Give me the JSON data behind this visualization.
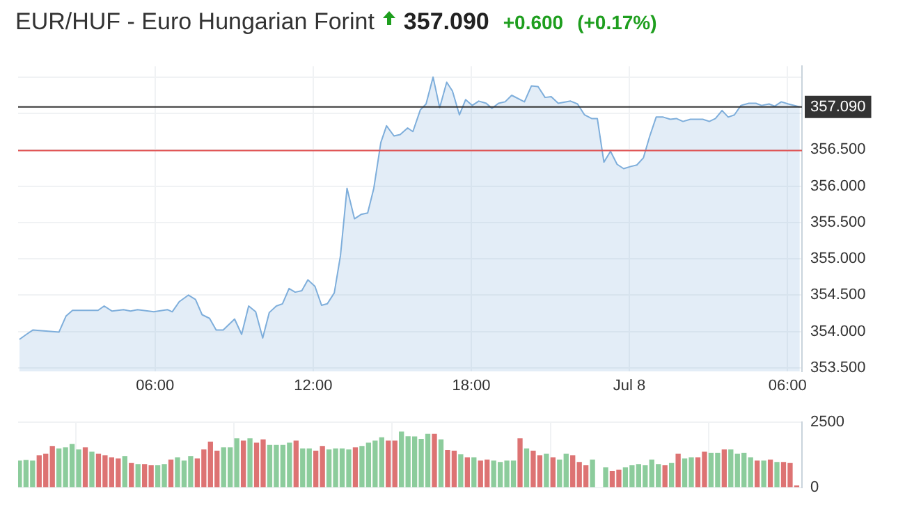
{
  "chart_data": [
    {
      "type": "area",
      "title": "EUR/HUF - Euro Hungarian Forint",
      "annotations": [
        "357.090",
        "+0.600",
        "(+0.17%)"
      ],
      "color": "#7eaedb",
      "x": [
        "--07-07T00:51",
        "--07-07T01:07",
        "--07-07T01:22",
        "--07-07T02:21",
        "--07-07T02:37",
        "--07-07T02:52",
        "--07-07T03:50",
        "--07-07T04:04",
        "--07-07T04:22",
        "--07-07T04:48",
        "--07-07T05:04",
        "--07-07T05:20",
        "--07-07T05:57",
        "--07-07T06:28",
        "--07-07T06:39",
        "--07-07T06:55",
        "--07-07T07:16",
        "--07-07T07:32",
        "--07-07T07:47",
        "--07-07T08:04",
        "--07-07T08:19",
        "--07-07T08:35",
        "--07-07T09:01",
        "--07-07T09:17",
        "--07-07T09:33",
        "--07-07T09:49",
        "--07-07T10:05",
        "--07-07T10:20",
        "--07-07T10:36",
        "--07-07T10:50",
        "--07-07T11:05",
        "--07-07T11:19",
        "--07-07T11:34",
        "--07-07T11:48",
        "--07-07T12:04",
        "--07-07T12:19",
        "--07-07T12:32",
        "--07-07T12:48",
        "--07-07T13:02",
        "--07-07T13:17",
        "--07-07T13:34",
        "--07-07T13:49",
        "--07-07T14:04",
        "--07-07T14:18",
        "--07-07T14:34",
        "--07-07T14:47",
        "--07-07T15:04",
        "--07-07T15:18",
        "--07-07T15:35",
        "--07-07T15:47",
        "--07-07T16:04",
        "--07-07T16:17",
        "--07-07T16:33",
        "--07-07T16:48",
        "--07-07T17:04",
        "--07-07T17:17",
        "--07-07T17:33",
        "--07-07T17:47",
        "--07-07T18:02",
        "--07-07T18:17",
        "--07-07T18:34",
        "--07-07T18:47",
        "--07-07T19:02",
        "--07-07T19:17",
        "--07-07T19:32",
        "--07-07T20:01",
        "--07-07T20:17",
        "--07-07T20:32",
        "--07-07T20:48",
        "--07-07T21:02",
        "--07-07T21:18",
        "--07-07T21:46",
        "--07-07T22:02",
        "--07-07T22:18",
        "--07-07T22:34",
        "--07-07T22:47",
        "--07-07T23:02",
        "--07-07T23:17",
        "--07-07T23:32",
        "--07-07T23:47",
        "--07-08T00:03",
        "--07-08T00:17",
        "--07-08T00:32",
        "--07-08T00:46",
        "--07-08T01:01",
        "--07-08T01:17",
        "--07-08T01:33",
        "--07-08T01:47",
        "--07-08T02:02",
        "--07-08T02:19",
        "--07-08T02:47",
        "--07-08T03:02",
        "--07-08T03:16",
        "--07-08T03:31",
        "--07-08T03:45",
        "--07-08T03:59",
        "--07-08T04:14",
        "--07-08T04:32",
        "--07-08T04:48",
        "--07-08T05:01",
        "--07-08T05:18",
        "--07-08T05:31",
        "--07-08T05:46",
        "--07-08T06:02",
        "--07-08T06:28"
      ],
      "values": [
        353.89,
        353.96,
        354.02,
        353.99,
        354.21,
        354.29,
        354.29,
        354.35,
        354.28,
        354.3,
        354.28,
        354.3,
        354.27,
        354.3,
        354.27,
        354.41,
        354.5,
        354.44,
        354.23,
        354.18,
        354.02,
        354.02,
        354.17,
        353.96,
        354.35,
        354.27,
        353.91,
        354.26,
        354.35,
        354.38,
        354.59,
        354.54,
        354.56,
        354.71,
        354.62,
        354.36,
        354.38,
        354.53,
        355.04,
        355.97,
        355.55,
        355.61,
        355.63,
        355.97,
        356.6,
        356.83,
        356.69,
        356.71,
        356.8,
        356.75,
        357.05,
        357.13,
        357.5,
        357.08,
        357.43,
        357.31,
        356.98,
        357.19,
        357.11,
        357.17,
        357.14,
        357.07,
        357.14,
        357.16,
        357.25,
        357.16,
        357.38,
        357.37,
        357.22,
        357.23,
        357.14,
        357.17,
        357.13,
        356.98,
        356.93,
        356.93,
        356.33,
        356.48,
        356.3,
        356.24,
        356.27,
        356.29,
        356.39,
        356.68,
        356.95,
        356.95,
        356.92,
        356.93,
        356.89,
        356.92,
        356.92,
        356.89,
        356.93,
        357.04,
        356.95,
        356.98,
        357.11,
        357.14,
        357.14,
        357.11,
        357.13,
        357.1,
        357.16,
        357.13,
        357.09
      ],
      "xlim": [
        "--07-07T00:48",
        "--07-08T06:33"
      ],
      "xticks": [
        {
          "value": "--07-07T06:00",
          "label": "06:00"
        },
        {
          "value": "--07-07T12:00",
          "label": "12:00"
        },
        {
          "value": "--07-07T18:00",
          "label": "18:00"
        },
        {
          "value": "--07-08",
          "label": "Jul 8"
        },
        {
          "value": "--07-08T06:00",
          "label": "06:00"
        }
      ],
      "ylim": [
        353.45,
        357.65
      ],
      "yticks": [
        {
          "value": 353.5,
          "label": "353.500"
        },
        {
          "value": 354,
          "label": "354.000"
        },
        {
          "value": 354.5,
          "label": "354.500"
        },
        {
          "value": 355,
          "label": "355.000"
        },
        {
          "value": 355.5,
          "label": "355.500"
        },
        {
          "value": 356,
          "label": "356.000"
        },
        {
          "value": 356.5,
          "label": "356.500"
        },
        {
          "value": 357,
          "label": null
        },
        {
          "value": 357.5,
          "label": null
        }
      ],
      "ref_lines": [
        {
          "axis": "y",
          "value": 357.09,
          "label": "357.090",
          "color": "#333333"
        },
        {
          "axis": "y",
          "value": 356.49,
          "color": "#e05050"
        }
      ],
      "grid": true
    },
    {
      "type": "bar",
      "tick_labels": "y",
      "grid": true,
      "x": [
        "--07-07T00:51",
        "--07-07T01:06",
        "--07-07T01:21",
        "--07-07T01:36",
        "--07-07T01:51",
        "--07-07T02:06",
        "--07-07T02:21",
        "--07-07T02:36",
        "--07-07T02:51",
        "--07-07T03:06",
        "--07-07T03:21",
        "--07-07T03:36",
        "--07-07T03:51",
        "--07-07T04:06",
        "--07-07T04:21",
        "--07-07T04:36",
        "--07-07T04:51",
        "--07-07T05:06",
        "--07-07T05:21",
        "--07-07T05:36",
        "--07-07T05:51",
        "--07-07T06:06",
        "--07-07T06:21",
        "--07-07T06:36",
        "--07-07T06:51",
        "--07-07T07:06",
        "--07-07T07:21",
        "--07-07T07:36",
        "--07-07T07:51",
        "--07-07T08:06",
        "--07-07T08:21",
        "--07-07T08:36",
        "--07-07T08:51",
        "--07-07T09:06",
        "--07-07T09:21",
        "--07-07T09:36",
        "--07-07T09:51",
        "--07-07T10:06",
        "--07-07T10:21",
        "--07-07T10:36",
        "--07-07T10:51",
        "--07-07T11:06",
        "--07-07T11:21",
        "--07-07T11:36",
        "--07-07T11:51",
        "--07-07T12:06",
        "--07-07T12:21",
        "--07-07T12:36",
        "--07-07T12:51",
        "--07-07T13:06",
        "--07-07T13:21",
        "--07-07T13:36",
        "--07-07T13:51",
        "--07-07T14:06",
        "--07-07T14:21",
        "--07-07T14:36",
        "--07-07T14:51",
        "--07-07T15:06",
        "--07-07T15:21",
        "--07-07T15:36",
        "--07-07T15:51",
        "--07-07T16:06",
        "--07-07T16:21",
        "--07-07T16:36",
        "--07-07T16:51",
        "--07-07T17:06",
        "--07-07T17:21",
        "--07-07T17:36",
        "--07-07T17:51",
        "--07-07T18:06",
        "--07-07T18:21",
        "--07-07T18:36",
        "--07-07T18:51",
        "--07-07T19:06",
        "--07-07T19:21",
        "--07-07T19:36",
        "--07-07T19:51",
        "--07-07T20:06",
        "--07-07T20:21",
        "--07-07T20:36",
        "--07-07T20:51",
        "--07-07T21:06",
        "--07-07T21:21",
        "--07-07T21:36",
        "--07-07T21:51",
        "--07-07T22:06",
        "--07-07T22:21",
        "--07-07T22:36",
        "--07-07T22:51",
        "--07-07T23:06",
        "--07-07T23:21",
        "--07-07T23:36",
        "--07-07T23:51",
        "--07-08T00:06",
        "--07-08T00:21",
        "--07-08T00:36",
        "--07-08T00:51",
        "--07-08T01:06",
        "--07-08T01:21",
        "--07-08T01:36",
        "--07-08T01:51",
        "--07-08T02:06",
        "--07-08T02:21",
        "--07-08T02:36",
        "--07-08T02:51",
        "--07-08T03:06",
        "--07-08T03:21",
        "--07-08T03:36",
        "--07-08T03:51",
        "--07-08T04:06",
        "--07-08T04:21",
        "--07-08T04:36",
        "--07-08T04:51",
        "--07-08T05:06",
        "--07-08T05:21",
        "--07-08T05:36",
        "--07-08T05:51",
        "--07-08T06:06",
        "--07-08T06:21"
      ],
      "values": [
        1010,
        1040,
        1010,
        1220,
        1270,
        1570,
        1480,
        1520,
        1650,
        1440,
        1520,
        1350,
        1270,
        1220,
        1140,
        1090,
        1180,
        920,
        880,
        880,
        830,
        830,
        880,
        1050,
        1140,
        1010,
        1180,
        1090,
        1440,
        1740,
        1390,
        1520,
        1520,
        1870,
        1780,
        1870,
        1700,
        1830,
        1610,
        1610,
        1610,
        1700,
        1780,
        1480,
        1480,
        1390,
        1570,
        1440,
        1480,
        1480,
        1440,
        1520,
        1570,
        1700,
        1780,
        1910,
        1780,
        1780,
        2130,
        1950,
        1940,
        1850,
        2040,
        2040,
        1830,
        1420,
        1390,
        1250,
        1140,
        1140,
        1010,
        1050,
        1010,
        960,
        1010,
        1010,
        1870,
        1480,
        1390,
        1220,
        1270,
        1140,
        1050,
        1270,
        1220,
        960,
        830,
        1050,
        null,
        750,
        620,
        660,
        750,
        830,
        880,
        830,
        1050,
        880,
        830,
        920,
        1270,
        1090,
        1140,
        1140,
        1350,
        1310,
        1310,
        1440,
        1440,
        1270,
        1310,
        1140,
        1010,
        1010,
        1050,
        960,
        960,
        920,
        60
      ],
      "colors": [
        "#8ccc9c",
        "#8ccc9c",
        "#8ccc9c",
        "#dd7373",
        "#dd7373",
        "#dd7373",
        "#8ccc9c",
        "#8ccc9c",
        "#8ccc9c",
        "#8ccc9c",
        "#dd7373",
        "#8ccc9c",
        "#dd7373",
        "#dd7373",
        "#dd7373",
        "#dd7373",
        "#8ccc9c",
        "#dd7373",
        "#8ccc9c",
        "#dd7373",
        "#dd7373",
        "#8ccc9c",
        "#8ccc9c",
        "#dd7373",
        "#8ccc9c",
        "#8ccc9c",
        "#8ccc9c",
        "#dd7373",
        "#dd7373",
        "#dd7373",
        "#dd7373",
        "#8ccc9c",
        "#8ccc9c",
        "#8ccc9c",
        "#dd7373",
        "#8ccc9c",
        "#dd7373",
        "#dd7373",
        "#8ccc9c",
        "#8ccc9c",
        "#8ccc9c",
        "#8ccc9c",
        "#dd7373",
        "#8ccc9c",
        "#8ccc9c",
        "#dd7373",
        "#dd7373",
        "#8ccc9c",
        "#8ccc9c",
        "#8ccc9c",
        "#8ccc9c",
        "#dd7373",
        "#8ccc9c",
        "#8ccc9c",
        "#8ccc9c",
        "#8ccc9c",
        "#dd7373",
        "#dd7373",
        "#8ccc9c",
        "#8ccc9c",
        "#8ccc9c",
        "#8ccc9c",
        "#8ccc9c",
        "#dd7373",
        "#8ccc9c",
        "#dd7373",
        "#dd7373",
        "#8ccc9c",
        "#dd7373",
        "#8ccc9c",
        "#dd7373",
        "#dd7373",
        "#8ccc9c",
        "#8ccc9c",
        "#8ccc9c",
        "#8ccc9c",
        "#dd7373",
        "#8ccc9c",
        "#dd7373",
        "#dd7373",
        "#8ccc9c",
        "#dd7373",
        "#8ccc9c",
        "#8ccc9c",
        "#dd7373",
        "#dd7373",
        "#dd7373",
        "#8ccc9c",
        "#8ccc9c",
        "#8ccc9c",
        "#dd7373",
        "#dd7373",
        "#8ccc9c",
        "#8ccc9c",
        "#8ccc9c",
        "#8ccc9c",
        "#8ccc9c",
        "#8ccc9c",
        "#dd7373",
        "#8ccc9c",
        "#dd7373",
        "#8ccc9c",
        "#8ccc9c",
        "#dd7373",
        "#dd7373",
        "#8ccc9c",
        "#8ccc9c",
        "#dd7373",
        "#8ccc9c",
        "#8ccc9c",
        "#8ccc9c",
        "#8ccc9c",
        "#dd7373",
        "#8ccc9c",
        "#dd7373",
        "#8ccc9c",
        "#dd7373",
        "#dd7373",
        "#dd7373"
      ],
      "xlim": [
        "--07-07T00:48",
        "--07-08T06:33"
      ],
      "xticks": [
        {
          "value": "--07-07T06:00",
          "label": null
        },
        {
          "value": "--07-07T12:00",
          "label": null
        },
        {
          "value": "--07-07T18:00",
          "label": null
        },
        {
          "value": "--07-08",
          "label": null
        },
        {
          "value": "--07-08T06:00",
          "label": null
        }
      ],
      "ylim": [
        0,
        2500
      ],
      "yticks": [
        0,
        2500
      ]
    }
  ]
}
